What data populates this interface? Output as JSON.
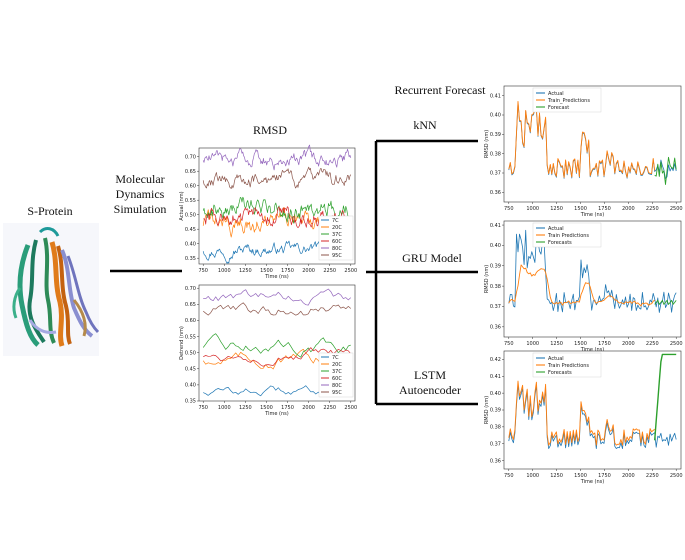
{
  "labels": {
    "s_protein": "S-Protein",
    "md_line1": "Molecular",
    "md_line2": "Dynamics",
    "md_line3": "Simulation",
    "rmsd": "RMSD",
    "recurrent": "Recurrent Forecast",
    "knn": "kNN",
    "gru": "GRU Model",
    "lstm_line1": "LSTM",
    "lstm_line2": "Autoencoder"
  },
  "icons": {
    "protein": "protein-structure-icon"
  },
  "chart_data": [
    {
      "type": "line",
      "ylabel": "Actual (nm)",
      "xlabel": "Time (ns)",
      "xlim": [
        700,
        2550
      ],
      "ylim": [
        0.33,
        0.73
      ],
      "xticks": [
        750,
        1000,
        1250,
        1500,
        1750,
        2000,
        2250,
        2500
      ],
      "yticks": [
        0.35,
        0.4,
        0.45,
        0.5,
        0.55,
        0.6,
        0.65,
        0.7
      ],
      "legend": "bottom-right",
      "series": [
        {
          "name": "7C",
          "color": "#1f77b4",
          "base": 0.38,
          "amp": 0.012
        },
        {
          "name": "20C",
          "color": "#ff7f0e",
          "base": 0.47,
          "amp": 0.02
        },
        {
          "name": "37C",
          "color": "#2ca02c",
          "base": 0.52,
          "amp": 0.02
        },
        {
          "name": "60C",
          "color": "#d62728",
          "base": 0.49,
          "amp": 0.018
        },
        {
          "name": "80C",
          "color": "#9467bd",
          "base": 0.69,
          "amp": 0.015
        },
        {
          "name": "95C",
          "color": "#8c564b",
          "base": 0.62,
          "amp": 0.015
        }
      ]
    },
    {
      "type": "line",
      "ylabel": "Detrend (nm)",
      "xlabel": "Time (ns)",
      "xlim": [
        700,
        2550
      ],
      "ylim": [
        0.35,
        0.71
      ],
      "xticks": [
        750,
        1000,
        1250,
        1500,
        1750,
        2000,
        2250,
        2500
      ],
      "yticks": [
        0.35,
        0.4,
        0.45,
        0.5,
        0.55,
        0.6,
        0.65,
        0.7
      ],
      "legend": "bottom-right",
      "series": [
        {
          "name": "7C",
          "color": "#1f77b4",
          "base": 0.38,
          "amp": 0.008
        },
        {
          "name": "20C",
          "color": "#ff7f0e",
          "base": 0.48,
          "amp": 0.012
        },
        {
          "name": "37C",
          "color": "#2ca02c",
          "base": 0.52,
          "amp": 0.012
        },
        {
          "name": "60C",
          "color": "#d62728",
          "base": 0.49,
          "amp": 0.01
        },
        {
          "name": "80C",
          "color": "#9467bd",
          "base": 0.67,
          "amp": 0.01
        },
        {
          "name": "95C",
          "color": "#8c564b",
          "base": 0.63,
          "amp": 0.012
        }
      ]
    },
    {
      "type": "line",
      "ylabel": "RMSD (nm)",
      "xlabel": "Time (ns)",
      "xlim": [
        700,
        2550
      ],
      "ylim": [
        0.355,
        0.415
      ],
      "xticks": [
        750,
        1000,
        1250,
        1500,
        1750,
        2000,
        2250,
        2500
      ],
      "yticks": [
        0.36,
        0.37,
        0.38,
        0.39,
        0.4,
        0.41
      ],
      "legend": "top-right",
      "series": [
        {
          "name": "Actual",
          "color": "#1f77b4"
        },
        {
          "name": "Train_Predictions",
          "color": "#ff7f0e"
        },
        {
          "name": "Forecast",
          "color": "#2ca02c"
        }
      ]
    },
    {
      "type": "line",
      "ylabel": "RMSD (nm)",
      "xlabel": "Time (ns)",
      "xlim": [
        700,
        2550
      ],
      "ylim": [
        0.355,
        0.412
      ],
      "xticks": [
        750,
        1000,
        1250,
        1500,
        1750,
        2000,
        2250,
        2500
      ],
      "yticks": [
        0.36,
        0.37,
        0.38,
        0.39,
        0.4,
        0.41
      ],
      "legend": "top-right",
      "series": [
        {
          "name": "Actual",
          "color": "#1f77b4"
        },
        {
          "name": "Train Predictions",
          "color": "#ff7f0e"
        },
        {
          "name": "Forecasts",
          "color": "#2ca02c"
        }
      ]
    },
    {
      "type": "line",
      "ylabel": "RMSD (nm)",
      "xlabel": "Time (ns)",
      "xlim": [
        700,
        2550
      ],
      "ylim": [
        0.355,
        0.425
      ],
      "xticks": [
        750,
        1000,
        1250,
        1500,
        1750,
        2000,
        2250,
        2500
      ],
      "yticks": [
        0.36,
        0.37,
        0.38,
        0.39,
        0.4,
        0.41,
        0.42
      ],
      "legend": "top-right",
      "series": [
        {
          "name": "Actual",
          "color": "#1f77b4"
        },
        {
          "name": "Train Predictions",
          "color": "#ff7f0e"
        },
        {
          "name": "Forecasts",
          "color": "#2ca02c"
        }
      ]
    }
  ]
}
